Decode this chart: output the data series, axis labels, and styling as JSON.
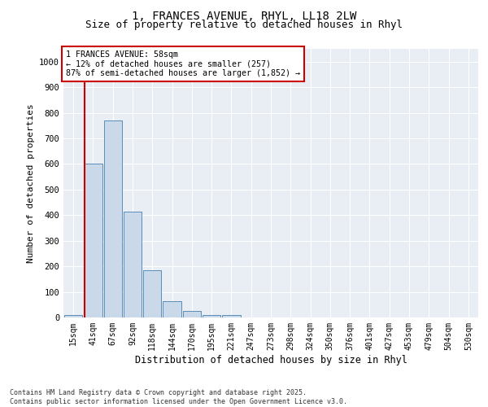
{
  "title1": "1, FRANCES AVENUE, RHYL, LL18 2LW",
  "title2": "Size of property relative to detached houses in Rhyl",
  "xlabel": "Distribution of detached houses by size in Rhyl",
  "ylabel": "Number of detached properties",
  "bar_labels": [
    "15sqm",
    "41sqm",
    "67sqm",
    "92sqm",
    "118sqm",
    "144sqm",
    "170sqm",
    "195sqm",
    "221sqm",
    "247sqm",
    "273sqm",
    "298sqm",
    "324sqm",
    "350sqm",
    "376sqm",
    "401sqm",
    "427sqm",
    "453sqm",
    "479sqm",
    "504sqm",
    "530sqm"
  ],
  "bar_values": [
    10,
    600,
    770,
    415,
    185,
    65,
    25,
    10,
    10,
    0,
    0,
    0,
    0,
    0,
    0,
    0,
    0,
    0,
    0,
    0,
    0
  ],
  "bar_color": "#c9d9ea",
  "bar_edgecolor": "#5b8db8",
  "property_line_x": 0.58,
  "property_line_color": "#cc0000",
  "annotation_title": "1 FRANCES AVENUE: 58sqm",
  "annotation_line1": "← 12% of detached houses are smaller (257)",
  "annotation_line2": "87% of semi-detached houses are larger (1,852) →",
  "annotation_box_color": "#cc0000",
  "ylim": [
    0,
    1050
  ],
  "yticks": [
    0,
    100,
    200,
    300,
    400,
    500,
    600,
    700,
    800,
    900,
    1000
  ],
  "background_color": "#e8eef4",
  "footer1": "Contains HM Land Registry data © Crown copyright and database right 2025.",
  "footer2": "Contains public sector information licensed under the Open Government Licence v3.0.",
  "title_fontsize": 10,
  "subtitle_fontsize": 9,
  "xlabel_fontsize": 8.5,
  "ylabel_fontsize": 8
}
